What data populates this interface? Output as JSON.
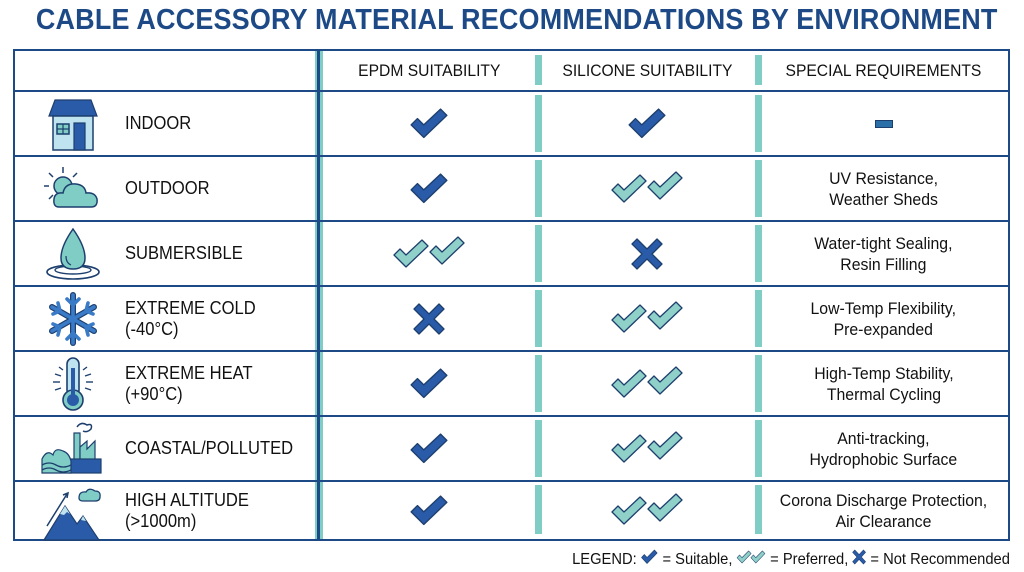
{
  "title": "CABLE ACCESSORY MATERIAL RECOMMENDATIONS BY ENVIRONMENT",
  "colors": {
    "primary": "#1d4a86",
    "accent": "#7fcdc5",
    "suitable": "#2a5ba8",
    "preferred": "#8fd0c9"
  },
  "table": {
    "headers": [
      "",
      "EPDM SUITABILITY",
      "SILICONE SUITABILITY",
      "SPECIAL REQUIREMENTS"
    ],
    "rows": [
      {
        "icon": "house-icon",
        "environment": "INDOOR",
        "environment_line2": "",
        "epdm": "suitable",
        "silicone": "suitable",
        "requirements_line1": "–",
        "requirements_line2": ""
      },
      {
        "icon": "sun-cloud-icon",
        "environment": "OUTDOOR",
        "environment_line2": "",
        "epdm": "suitable",
        "silicone": "preferred",
        "requirements_line1": "UV Resistance,",
        "requirements_line2": "Weather Sheds"
      },
      {
        "icon": "water-drop-icon",
        "environment": "SUBMERSIBLE",
        "environment_line2": "",
        "epdm": "preferred",
        "silicone": "not_recommended",
        "requirements_line1": "Water-tight Sealing,",
        "requirements_line2": "Resin Filling"
      },
      {
        "icon": "snowflake-icon",
        "environment": "EXTREME COLD",
        "environment_line2": "(-40°C)",
        "epdm": "not_recommended",
        "silicone": "preferred",
        "requirements_line1": "Low-Temp Flexibility,",
        "requirements_line2": "Pre-expanded"
      },
      {
        "icon": "thermometer-icon",
        "environment": "EXTREME HEAT",
        "environment_line2": "(+90°C)",
        "epdm": "suitable",
        "silicone": "preferred",
        "requirements_line1": "High-Temp Stability,",
        "requirements_line2": "Thermal Cycling"
      },
      {
        "icon": "factory-waves-icon",
        "environment": "COASTAL/POLLUTED",
        "environment_line2": "",
        "epdm": "suitable",
        "silicone": "preferred",
        "requirements_line1": "Anti-tracking,",
        "requirements_line2": "Hydrophobic Surface"
      },
      {
        "icon": "mountain-icon",
        "environment": "HIGH ALTITUDE",
        "environment_line2": "(>1000m)",
        "epdm": "suitable",
        "silicone": "preferred",
        "requirements_line1": "Corona Discharge Protection,",
        "requirements_line2": "Air Clearance"
      }
    ]
  },
  "legend": {
    "prefix": "LEGEND:",
    "suitable": "= Suitable,",
    "preferred": "= Preferred,",
    "not_recommended": "= Not Recommended"
  }
}
